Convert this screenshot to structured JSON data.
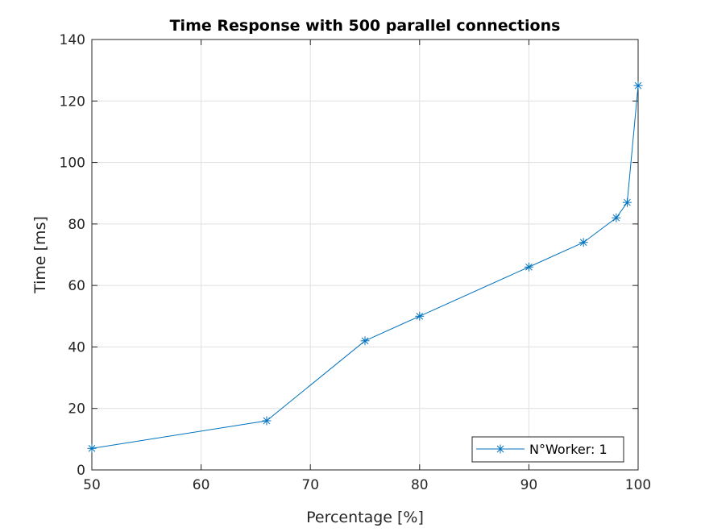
{
  "chart_data": {
    "type": "line",
    "title": "Time Response with 500 parallel connections",
    "xlabel": "Percentage [%]",
    "ylabel": "Time [ms]",
    "xlim": [
      50,
      100
    ],
    "ylim": [
      0,
      140
    ],
    "xticks": [
      50,
      60,
      70,
      80,
      90,
      100
    ],
    "yticks": [
      0,
      20,
      40,
      60,
      80,
      100,
      120,
      140
    ],
    "grid": true,
    "legend_position": "bottom-right",
    "series": [
      {
        "name": "N°Worker: 1",
        "color": "#0072BD",
        "marker": "asterisk",
        "x": [
          50,
          66,
          75,
          80,
          90,
          95,
          98,
          99,
          100
        ],
        "y": [
          7,
          16,
          42,
          50,
          66,
          74,
          82,
          87,
          125
        ]
      }
    ]
  }
}
